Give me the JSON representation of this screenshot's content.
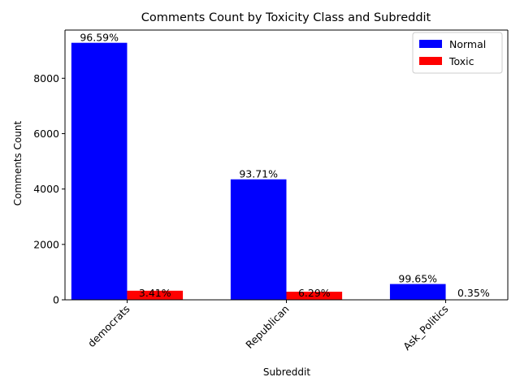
{
  "chart_data": {
    "type": "bar",
    "title": "Comments Count by Toxicity Class and Subreddit",
    "xlabel": "Subreddit",
    "ylabel": "Comments Count",
    "categories": [
      "democrats",
      "Republican",
      "Ask_Politics"
    ],
    "series": [
      {
        "name": "Normal",
        "color": "#0000ff",
        "values": [
          9280,
          4350,
          570
        ],
        "labels": [
          "96.59%",
          "93.71%",
          "99.65%"
        ]
      },
      {
        "name": "Toxic",
        "color": "#ff0000",
        "values": [
          328,
          292,
          2
        ],
        "labels": [
          "3.41%",
          "6.29%",
          "0.35%"
        ]
      }
    ],
    "ylim": [
      0,
      9740
    ],
    "yticks": [
      0,
      2000,
      4000,
      6000,
      8000
    ],
    "grid": false,
    "legend_position": "top-right"
  }
}
